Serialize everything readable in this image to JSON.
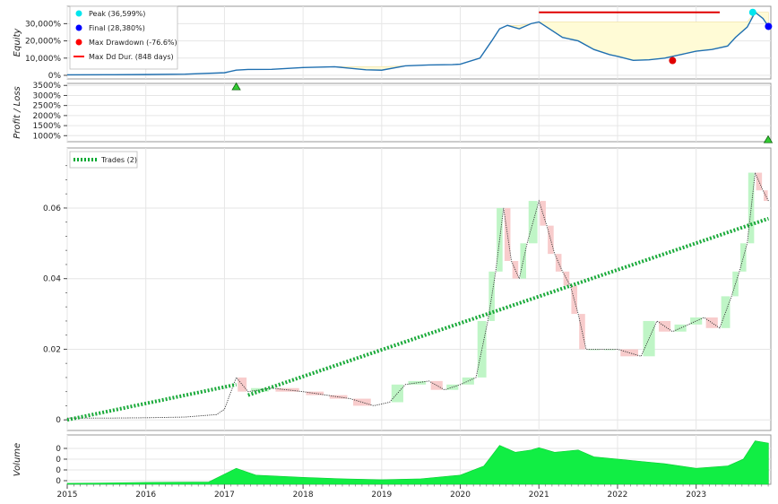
{
  "chart_data": [
    {
      "type": "area",
      "panel": "equity",
      "ylabel": "Equity",
      "y_ticks": [
        "0%",
        "10,000%",
        "20,000%",
        "30,000%"
      ],
      "ylim": [
        0,
        38000
      ],
      "grid": true,
      "legend_placement": "top-left",
      "legend": [
        {
          "label": "Peak (36,599%)",
          "color": "#00e5ee",
          "kind": "dot"
        },
        {
          "label": "Final (28,380%)",
          "color": "#0000ff",
          "kind": "dot"
        },
        {
          "label": "Max Drawdown (-76.6%)",
          "color": "#ff0000",
          "kind": "dot"
        },
        {
          "label": "Max Dd Dur. (848 days)",
          "color": "#ff0000",
          "kind": "line"
        }
      ],
      "series": [
        {
          "x": [
            2015.0,
            2015.5,
            2016.0,
            2016.5,
            2017.0,
            2017.15,
            2017.3,
            2017.6,
            2018.0,
            2018.4,
            2018.8,
            2019.0,
            2019.3,
            2019.6,
            2019.9,
            2020.0,
            2020.25,
            2020.4,
            2020.5,
            2020.6,
            2020.75,
            2020.9,
            2021.0,
            2021.1,
            2021.3,
            2021.5,
            2021.7,
            2021.9,
            2022.0,
            2022.2,
            2022.4,
            2022.6,
            2022.8,
            2023.0,
            2023.2,
            2023.4,
            2023.5,
            2023.65,
            2023.75,
            2023.85,
            2023.92
          ],
          "y": [
            300,
            350,
            450,
            700,
            1500,
            3000,
            3400,
            3500,
            4500,
            5000,
            3200,
            3000,
            5500,
            6000,
            6200,
            6500,
            10000,
            20000,
            27000,
            29000,
            27000,
            30000,
            31000,
            28000,
            22000,
            20000,
            15000,
            12000,
            11000,
            8700,
            9000,
            10000,
            12000,
            14000,
            15000,
            17000,
            22000,
            28000,
            36599,
            33000,
            28380
          ]
        }
      ],
      "peak": {
        "x": 2023.72,
        "y": 36599,
        "label": "Peak (36,599%)"
      },
      "final": {
        "x": 2023.92,
        "y": 28380,
        "label": "Final (28,380%)"
      },
      "max_drawdown": {
        "x": 2022.7,
        "y": 8560,
        "label": "Max Drawdown (-76.6%)"
      },
      "max_dd_duration": {
        "x_start": 2021.0,
        "x_end": 2023.3,
        "y": 36599,
        "label": "Max Dd Dur. (848 days)"
      }
    },
    {
      "type": "scatter",
      "panel": "profit_loss",
      "ylabel": "Profit / Loss",
      "y_ticks": [
        "1000%",
        "1500%",
        "2000%",
        "2500%",
        "3000%",
        "3500%"
      ],
      "ylim": [
        700,
        3600
      ],
      "grid": true,
      "markers": [
        {
          "x": 2017.15,
          "y": 3550
        },
        {
          "x": 2023.92,
          "y": 600
        }
      ]
    },
    {
      "type": "line",
      "panel": "price",
      "y_ticks": [
        "0",
        "0.02",
        "0.04",
        "0.06"
      ],
      "ylim": [
        -0.003,
        0.077
      ],
      "grid": true,
      "legend_placement": "top-left",
      "legend": [
        {
          "label": "Trades (2)",
          "color": "#00aa33",
          "kind": "dashed-line"
        }
      ],
      "series": [
        {
          "x": [
            2015.0,
            2015.5,
            2016.0,
            2016.5,
            2016.9,
            2017.0,
            2017.15,
            2017.3,
            2017.6,
            2018.0,
            2018.3,
            2018.6,
            2018.9,
            2019.1,
            2019.3,
            2019.6,
            2019.8,
            2020.0,
            2020.2,
            2020.35,
            2020.45,
            2020.55,
            2020.65,
            2020.75,
            2020.85,
            2021.0,
            2021.1,
            2021.2,
            2021.3,
            2021.4,
            2021.5,
            2021.6,
            2021.8,
            2022.0,
            2022.3,
            2022.5,
            2022.7,
            2022.9,
            2023.1,
            2023.3,
            2023.45,
            2023.55,
            2023.65,
            2023.75,
            2023.85,
            2023.92
          ],
          "y": [
            0.0005,
            0.0005,
            0.0006,
            0.0008,
            0.0015,
            0.003,
            0.012,
            0.008,
            0.009,
            0.008,
            0.007,
            0.006,
            0.004,
            0.005,
            0.01,
            0.011,
            0.0085,
            0.01,
            0.012,
            0.028,
            0.042,
            0.06,
            0.045,
            0.04,
            0.05,
            0.062,
            0.055,
            0.047,
            0.042,
            0.038,
            0.03,
            0.02,
            0.02,
            0.02,
            0.018,
            0.028,
            0.025,
            0.027,
            0.029,
            0.026,
            0.035,
            0.042,
            0.05,
            0.07,
            0.065,
            0.062
          ]
        }
      ],
      "trades": [
        {
          "x_start": 2015.0,
          "y_start": 0.0,
          "x_end": 2017.15,
          "y_end": 0.01
        },
        {
          "x_start": 2017.3,
          "y_start": 0.007,
          "x_end": 2023.92,
          "y_end": 0.057
        }
      ]
    },
    {
      "type": "area",
      "panel": "volume",
      "ylabel": "Volume",
      "y_ticks": [
        "0",
        "0",
        "0",
        "0"
      ],
      "ylim": [
        0,
        1
      ],
      "grid": true,
      "series": [
        {
          "x": [
            2015.0,
            2016.0,
            2016.8,
            2017.15,
            2017.4,
            2018.0,
            2018.5,
            2019.0,
            2019.5,
            2020.0,
            2020.3,
            2020.5,
            2020.7,
            2020.9,
            2021.0,
            2021.2,
            2021.5,
            2021.7,
            2022.0,
            2022.3,
            2022.6,
            2023.0,
            2023.4,
            2023.6,
            2023.75,
            2023.92
          ],
          "y": [
            0.02,
            0.04,
            0.05,
            0.35,
            0.2,
            0.15,
            0.12,
            0.1,
            0.12,
            0.2,
            0.4,
            0.85,
            0.7,
            0.75,
            0.8,
            0.7,
            0.75,
            0.6,
            0.55,
            0.5,
            0.45,
            0.35,
            0.4,
            0.55,
            0.95,
            0.9
          ]
        }
      ],
      "x_ticks": [
        "2015",
        "2016",
        "2017",
        "2018",
        "2019",
        "2020",
        "2021",
        "2022",
        "2023"
      ],
      "xlim": [
        2015.0,
        2023.95
      ]
    }
  ]
}
